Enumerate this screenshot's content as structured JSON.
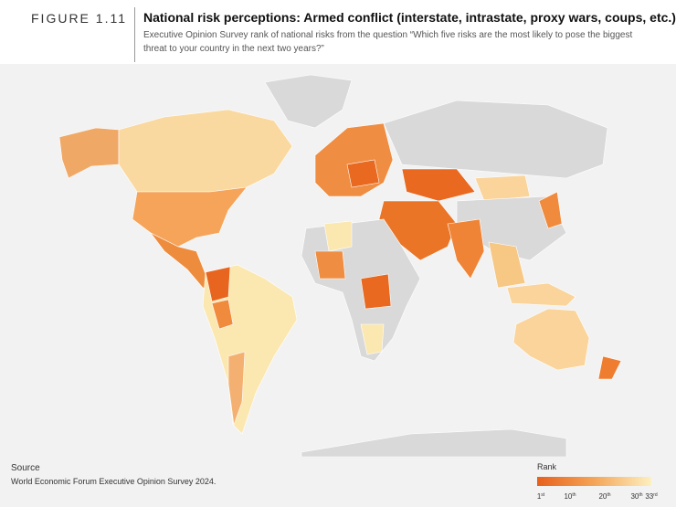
{
  "header": {
    "figure": "FIGURE 1.11",
    "title": "National risk perceptions: Armed conflict (interstate, intrastate, proxy wars, coups, etc.)",
    "subtitle": "Executive Opinion Survey rank of national risks from the question “Which five risks are the most likely to pose the biggest threat to your country in the next two years?”"
  },
  "source": {
    "label": "Source",
    "text": "World Economic Forum Executive Opinion Survey 2024."
  },
  "legend": {
    "title": "Rank",
    "ticks": [
      {
        "num": "1",
        "suffix": "st"
      },
      {
        "num": "10",
        "suffix": "th"
      },
      {
        "num": "20",
        "suffix": "th"
      },
      {
        "num": "30",
        "suffix": "th"
      },
      {
        "num": "33",
        "suffix": "rd"
      }
    ]
  }
}
